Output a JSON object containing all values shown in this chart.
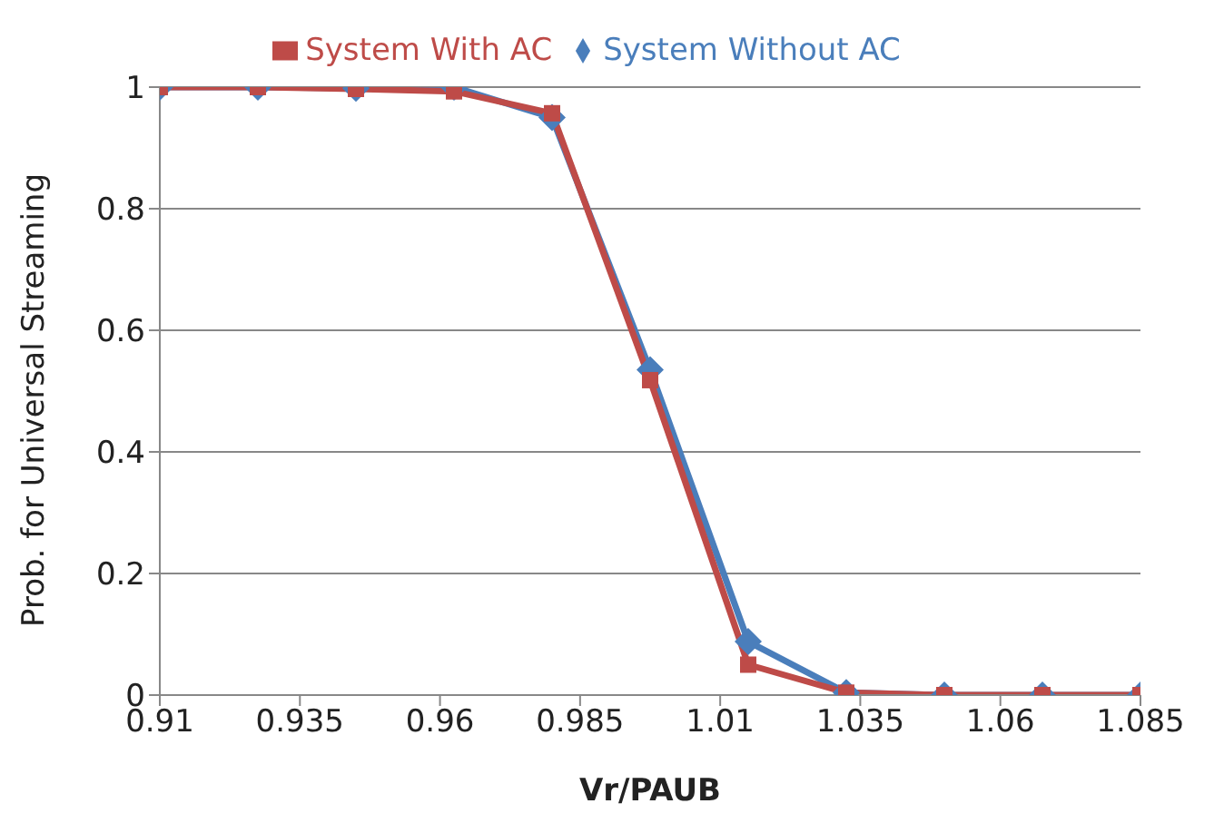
{
  "chart_data": {
    "type": "line",
    "xlabel": "Vr/PAUB",
    "ylabel": "Prob. for Universal Streaming",
    "x": [
      0.91,
      0.9275,
      0.945,
      0.9625,
      0.98,
      0.9975,
      1.015,
      1.0325,
      1.05,
      1.0675,
      1.085
    ],
    "series": [
      {
        "name": "System Without AC",
        "color": "#4a7ebb",
        "marker": "diamond",
        "values": [
          1,
          1,
          0.998,
          1,
          0.95,
          0.535,
          0.088,
          0.004,
          0,
          0,
          0
        ]
      },
      {
        "name": "System With AC",
        "color": "#be4b48",
        "marker": "square",
        "values": [
          1,
          1,
          0.997,
          0.993,
          0.957,
          0.518,
          0.05,
          0.004,
          0,
          0,
          0
        ]
      }
    ],
    "xlim": [
      0.91,
      1.085
    ],
    "xticks": [
      0.91,
      0.935,
      0.96,
      0.985,
      1.01,
      1.035,
      1.06,
      1.085
    ],
    "ylim": [
      0,
      1
    ],
    "yticks": [
      0,
      0.2,
      0.4,
      0.6,
      0.8,
      1
    ],
    "grid": "y",
    "legend": "top",
    "line_style": "solid"
  }
}
